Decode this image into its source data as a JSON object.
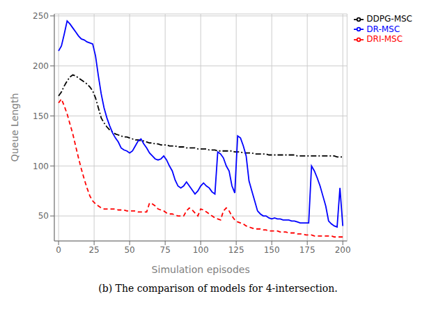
{
  "chart_data": {
    "type": "line",
    "xlabel": "Simulation episodes",
    "ylabel": "Queue Length",
    "annotations": [
      "(b) The comparison of models for 4-intersection."
    ],
    "xlim": [
      -3,
      203
    ],
    "ylim": [
      25,
      252
    ],
    "xticks": [
      0,
      25,
      50,
      75,
      100,
      125,
      150,
      175,
      200
    ],
    "yticks": [
      50,
      100,
      150,
      200,
      250
    ],
    "grid": true,
    "legend": "upper right",
    "x": [
      0,
      2,
      4,
      6,
      8,
      10,
      12,
      14,
      16,
      18,
      20,
      22,
      24,
      26,
      28,
      30,
      32,
      34,
      36,
      38,
      40,
      42,
      44,
      46,
      48,
      50,
      52,
      54,
      56,
      58,
      60,
      62,
      64,
      66,
      68,
      70,
      72,
      74,
      76,
      78,
      80,
      82,
      84,
      86,
      88,
      90,
      92,
      94,
      96,
      98,
      100,
      102,
      104,
      106,
      108,
      110,
      112,
      114,
      116,
      118,
      120,
      122,
      124,
      126,
      128,
      130,
      132,
      134,
      136,
      138,
      140,
      142,
      144,
      146,
      148,
      150,
      152,
      154,
      156,
      158,
      160,
      162,
      164,
      166,
      168,
      170,
      172,
      174,
      176,
      178,
      180,
      182,
      184,
      186,
      188,
      190,
      192,
      194,
      196,
      198,
      200
    ],
    "series": [
      {
        "name": "DDPG-MSC",
        "color": "black",
        "line_style": "dashdot",
        "values": [
          170,
          174,
          180,
          185,
          189,
          191,
          190,
          188,
          186,
          184,
          182,
          179,
          175,
          168,
          158,
          148,
          143,
          139,
          136,
          134,
          132,
          131,
          130,
          129,
          129,
          128,
          127,
          126,
          126,
          125,
          125,
          124,
          123,
          123,
          122,
          122,
          121,
          121,
          121,
          120,
          120,
          120,
          119,
          119,
          119,
          118,
          118,
          118,
          118,
          117,
          117,
          117,
          117,
          116,
          116,
          116,
          115,
          115,
          115,
          115,
          115,
          115,
          114,
          114,
          114,
          113,
          113,
          113,
          113,
          112,
          112,
          112,
          112,
          112,
          111,
          111,
          111,
          111,
          111,
          111,
          111,
          111,
          111,
          111,
          110,
          110,
          110,
          110,
          110,
          110,
          110,
          110,
          110,
          110,
          110,
          110,
          110,
          110,
          109,
          109,
          109
        ]
      },
      {
        "name": "DR-MSC",
        "color": "blue",
        "line_style": "solid",
        "values": [
          215,
          220,
          232,
          245,
          242,
          238,
          234,
          230,
          227,
          226,
          224,
          223,
          222,
          210,
          190,
          172,
          158,
          148,
          140,
          133,
          128,
          124,
          118,
          116,
          115,
          113,
          115,
          120,
          125,
          127,
          122,
          118,
          113,
          110,
          107,
          106,
          107,
          110,
          106,
          100,
          95,
          86,
          80,
          78,
          80,
          84,
          80,
          76,
          72,
          75,
          80,
          83,
          80,
          78,
          74,
          72,
          114,
          112,
          108,
          100,
          95,
          80,
          73,
          130,
          128,
          120,
          110,
          85,
          75,
          65,
          55,
          52,
          50,
          50,
          48,
          47,
          48,
          47,
          47,
          46,
          46,
          46,
          45,
          45,
          44,
          43,
          43,
          43,
          43,
          100,
          95,
          88,
          80,
          70,
          60,
          45,
          42,
          40,
          39,
          78,
          40
        ]
      },
      {
        "name": "DRI-MSC",
        "color": "red",
        "line_style": "dashed",
        "values": [
          163,
          167,
          160,
          152,
          142,
          132,
          120,
          108,
          97,
          87,
          78,
          70,
          65,
          62,
          60,
          58,
          57,
          57,
          57,
          57,
          57,
          56,
          56,
          56,
          55,
          55,
          55,
          55,
          54,
          54,
          54,
          54,
          63,
          62,
          60,
          57,
          56,
          55,
          53,
          52,
          52,
          51,
          50,
          50,
          50,
          55,
          58,
          56,
          53,
          50,
          57,
          56,
          54,
          52,
          50,
          48,
          47,
          46,
          55,
          58,
          55,
          50,
          46,
          44,
          43,
          42,
          40,
          39,
          38,
          37,
          37,
          37,
          36,
          36,
          35,
          35,
          35,
          35,
          34,
          34,
          34,
          33,
          33,
          33,
          32,
          32,
          32,
          31,
          31,
          31,
          30,
          30,
          30,
          30,
          30,
          30,
          30,
          29,
          29,
          29,
          29
        ]
      }
    ]
  }
}
